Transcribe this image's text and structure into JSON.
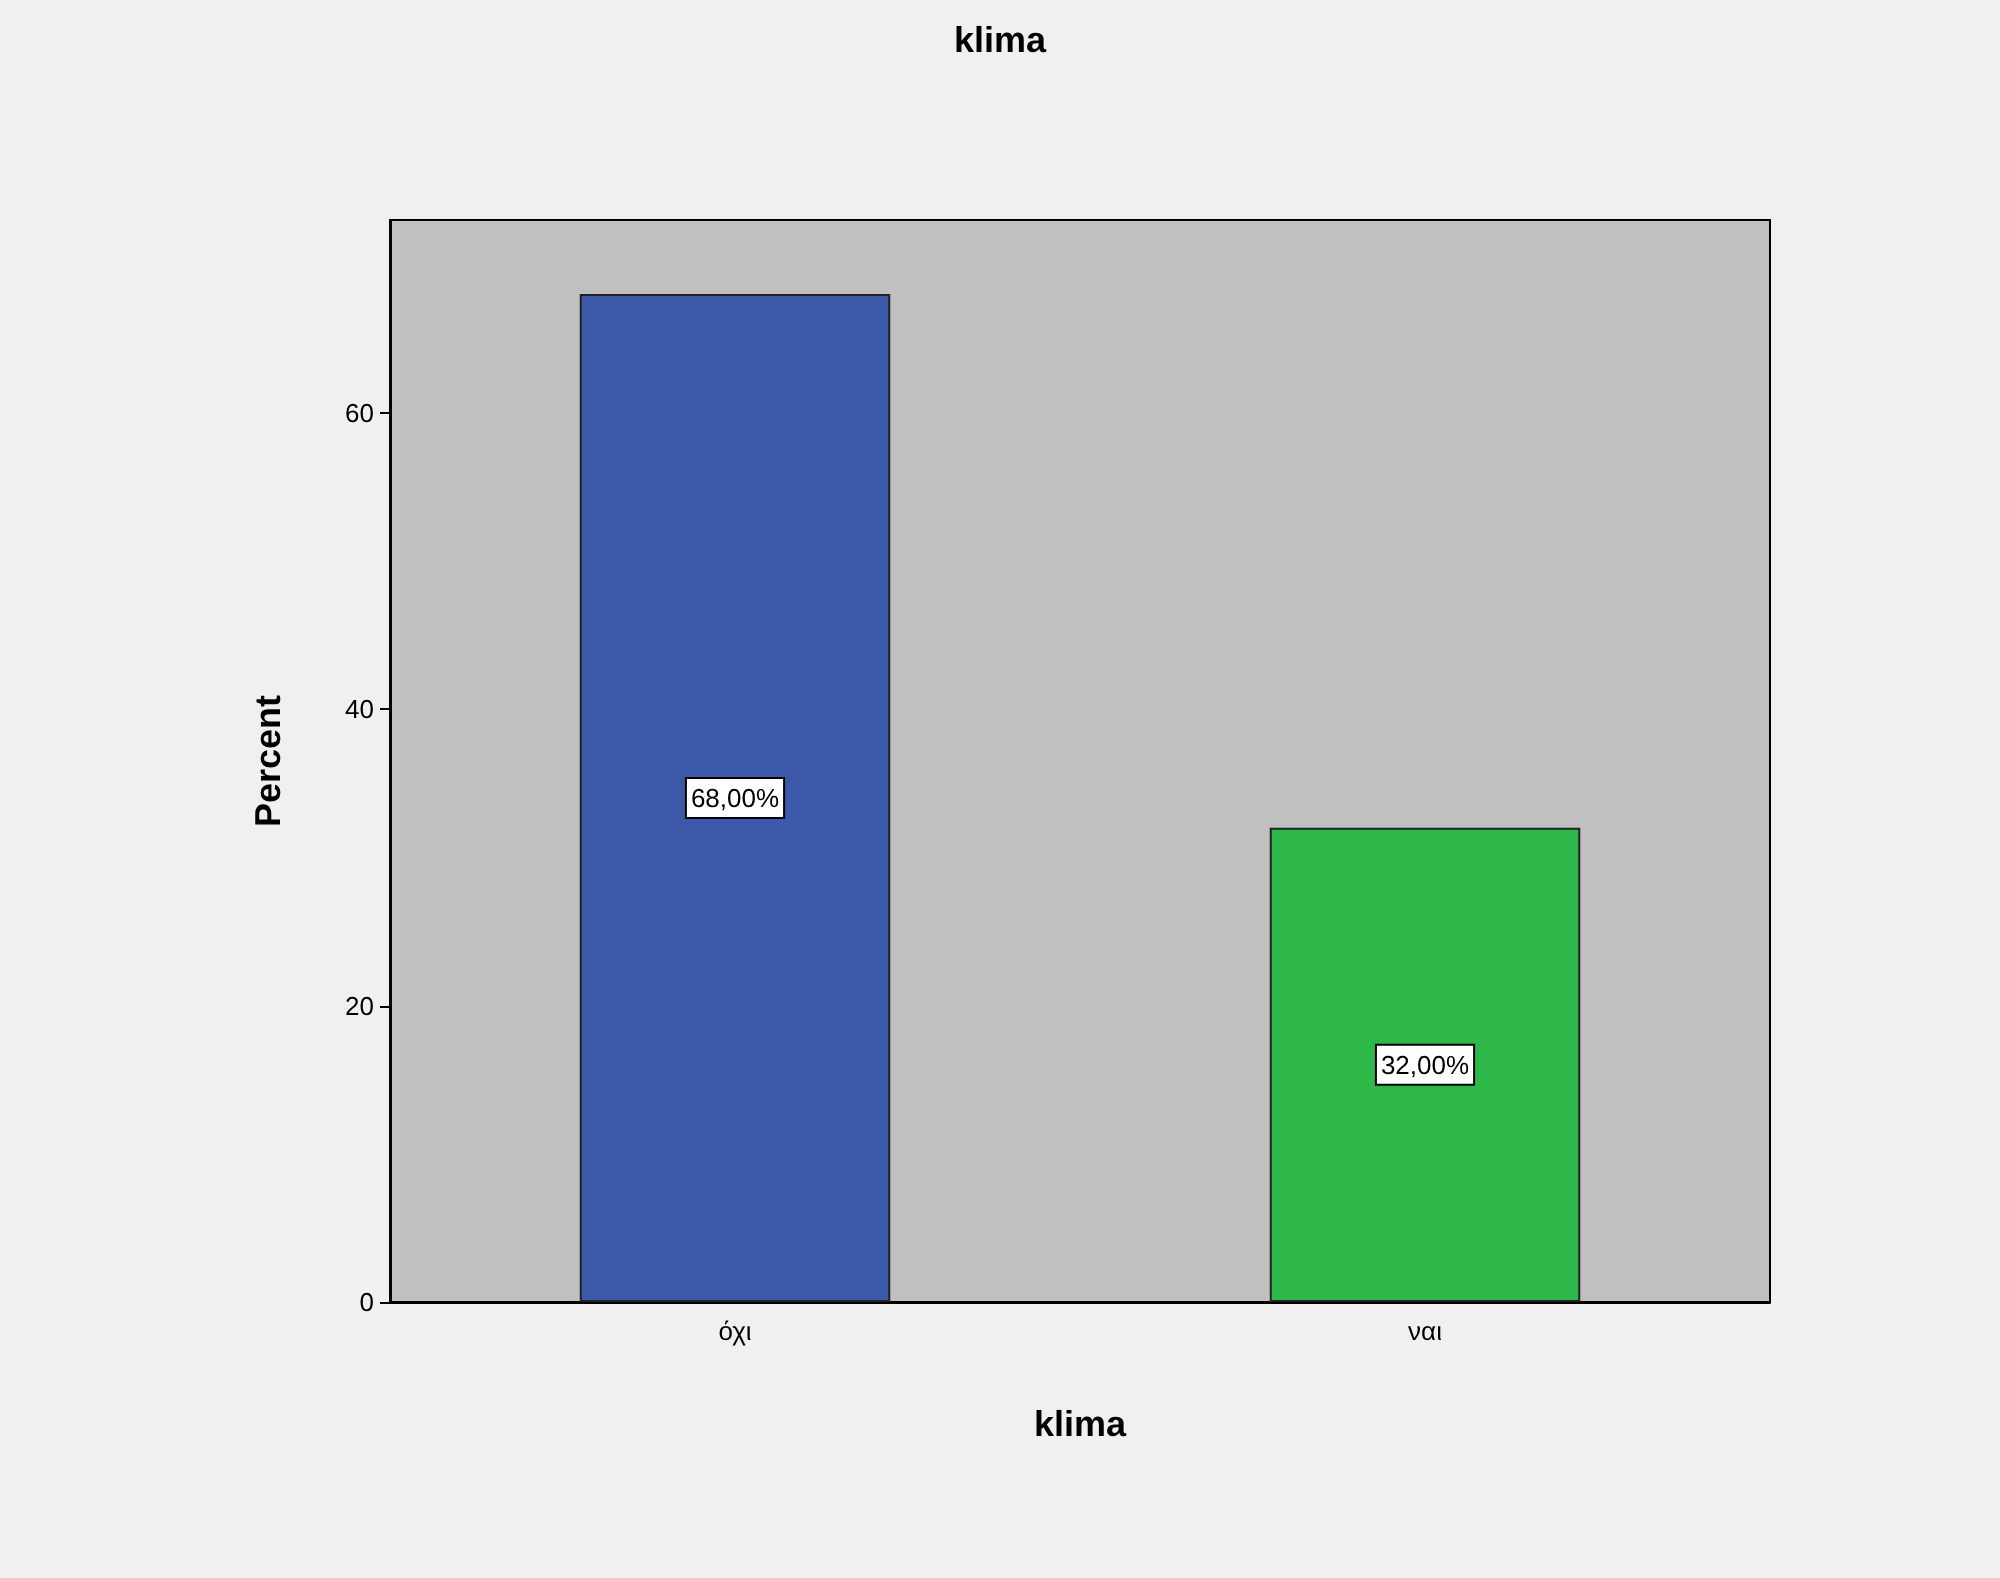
{
  "chart_data": {
    "type": "bar",
    "title": "klima",
    "xlabel": "klima",
    "ylabel": "Percent",
    "categories": [
      "όχι",
      "ναι"
    ],
    "values": [
      68,
      32
    ],
    "colors": [
      "#3c58a8",
      "#2eb84a"
    ],
    "value_labels": [
      "68,00%",
      "32,00%"
    ],
    "ylim": [
      0,
      73
    ],
    "yticks": [
      0,
      20,
      40,
      60
    ],
    "grid": false
  }
}
